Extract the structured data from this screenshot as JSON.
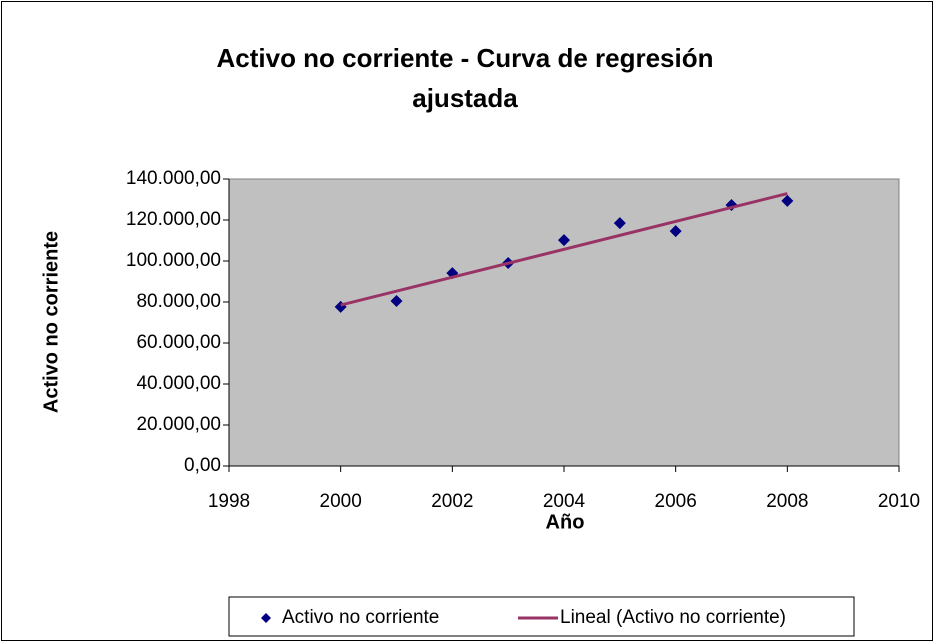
{
  "chart_data": {
    "type": "scatter",
    "title": [
      "Activo no corriente - Curva de regresión",
      "ajustada"
    ],
    "x_label": "Año",
    "y_label": "Activo no corriente",
    "series": [
      {
        "name": "Activo no corriente",
        "color": "#000080",
        "marker": "diamond",
        "x": [
          2000,
          2001,
          2002,
          2003,
          2004,
          2005,
          2006,
          2007,
          2008
        ],
        "values": [
          77600,
          80500,
          94100,
          99000,
          110200,
          118500,
          114600,
          127300,
          129300
        ]
      },
      {
        "name": "Lineal (Activo no corriente)",
        "color": "#993366",
        "marker": "line",
        "x": [
          2000,
          2008
        ],
        "values": [
          78500,
          132900
        ]
      }
    ],
    "xlim": [
      1998,
      2010
    ],
    "xticks": [
      1998,
      2000,
      2002,
      2004,
      2006,
      2008,
      2010
    ],
    "ylim": [
      0,
      140000
    ],
    "yticks": [
      {
        "value": 0,
        "label": "0,00"
      },
      {
        "value": 20000,
        "label": "20.000,00"
      },
      {
        "value": 40000,
        "label": "40.000,00"
      },
      {
        "value": 60000,
        "label": "60.000,00"
      },
      {
        "value": 80000,
        "label": "80.000,00"
      },
      {
        "value": 100000,
        "label": "100.000,00"
      },
      {
        "value": 120000,
        "label": "120.000,00"
      },
      {
        "value": 140000,
        "label": "140.000,00"
      }
    ],
    "plot_background": "#c0c0c0",
    "grid": false,
    "legend": "bottom"
  }
}
